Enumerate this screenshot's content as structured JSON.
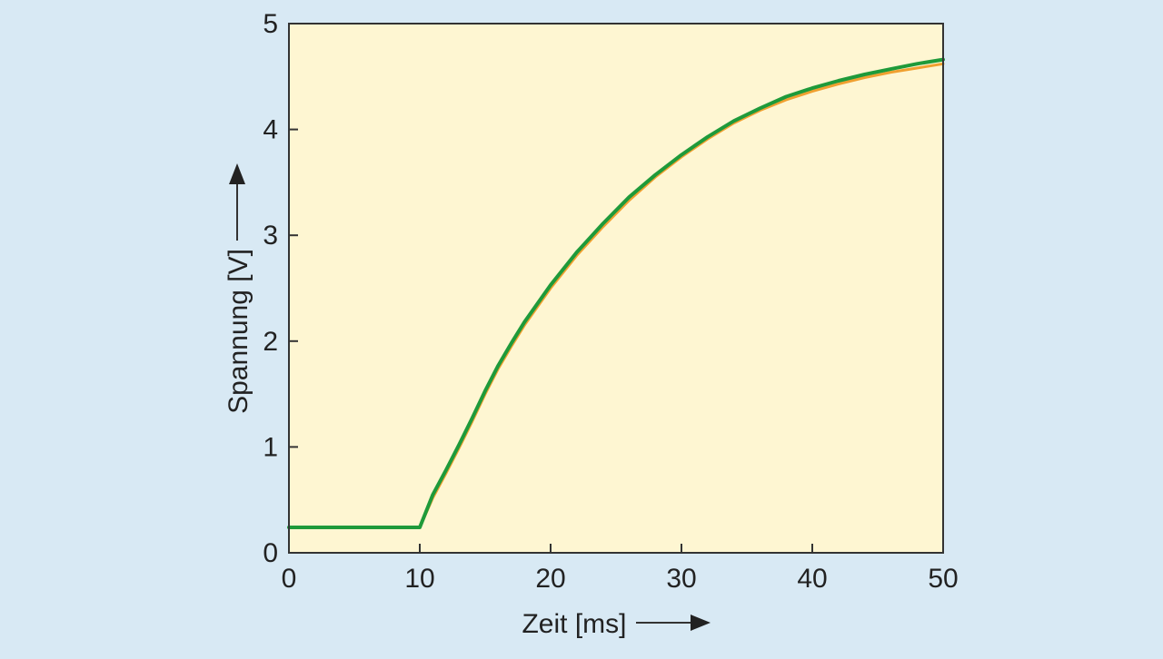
{
  "chart_data": {
    "type": "line",
    "title": "",
    "xlabel": "Zeit [ms]",
    "ylabel": "Spannung [V]",
    "xlim": [
      0,
      50
    ],
    "ylim": [
      0,
      5
    ],
    "xticks": [
      0,
      10,
      20,
      30,
      40,
      50
    ],
    "yticks": [
      0,
      1,
      2,
      3,
      4,
      5
    ],
    "xtick_labels": [
      "0",
      "10",
      "20",
      "30",
      "40",
      "50"
    ],
    "ytick_labels": [
      "0",
      "1",
      "2",
      "3",
      "4",
      "5"
    ],
    "grid": false,
    "legend": "none",
    "colors": {
      "background": "#d8e9f4",
      "plot_area": "#fef6d2",
      "axis": "#333333",
      "series_orange": "#f0a030",
      "series_green": "#1e9a3a"
    },
    "series": [
      {
        "color": "#f0a030",
        "x": [
          0,
          10,
          11,
          12,
          13,
          14,
          15,
          16,
          17,
          18,
          20,
          22,
          24,
          26,
          28,
          30,
          32,
          34,
          36,
          38,
          40,
          42,
          44,
          46,
          48,
          50
        ],
        "y": [
          0.24,
          0.24,
          0.52,
          0.75,
          0.99,
          1.24,
          1.5,
          1.74,
          1.95,
          2.15,
          2.5,
          2.81,
          3.08,
          3.33,
          3.55,
          3.74,
          3.91,
          4.06,
          4.18,
          4.28,
          4.36,
          4.43,
          4.49,
          4.54,
          4.58,
          4.62
        ]
      },
      {
        "color": "#1e9a3a",
        "x": [
          0,
          10,
          11,
          12,
          13,
          14,
          15,
          16,
          17,
          18,
          20,
          22,
          24,
          26,
          28,
          30,
          32,
          34,
          36,
          38,
          40,
          42,
          44,
          46,
          48,
          50
        ],
        "y": [
          0.24,
          0.24,
          0.55,
          0.78,
          1.02,
          1.27,
          1.53,
          1.77,
          1.98,
          2.18,
          2.53,
          2.84,
          3.11,
          3.36,
          3.57,
          3.76,
          3.93,
          4.08,
          4.2,
          4.31,
          4.39,
          4.46,
          4.52,
          4.57,
          4.62,
          4.66
        ]
      }
    ]
  }
}
